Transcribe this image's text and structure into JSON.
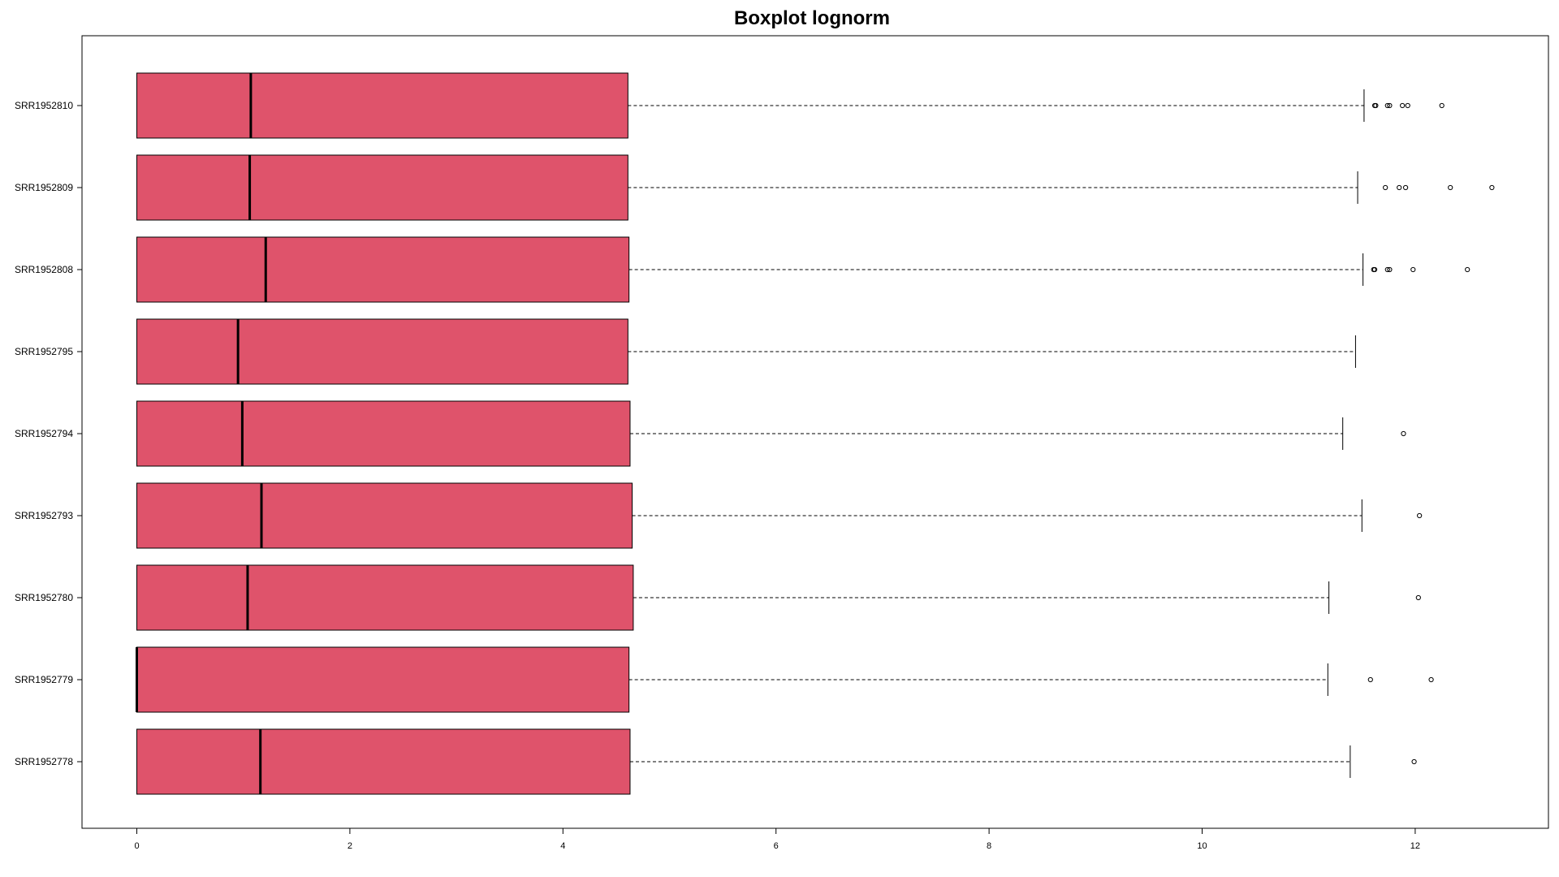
{
  "chart_data": {
    "type": "boxplot",
    "orientation": "horizontal",
    "title": "Boxplot lognorm",
    "xlabel": "",
    "ylabel": "",
    "xlim": [
      -0.5,
      13.1
    ],
    "xticks": [
      0,
      2,
      4,
      6,
      8,
      10,
      12
    ],
    "xtick_labels": [
      "0",
      "2",
      "4",
      "6",
      "8",
      "10",
      "12"
    ],
    "box_color": "#DF536B",
    "categories": [
      "SRR1952778",
      "SRR1952779",
      "SRR1952780",
      "SRR1952793",
      "SRR1952794",
      "SRR1952795",
      "SRR1952808",
      "SRR1952809",
      "SRR1952810"
    ],
    "boxes": [
      {
        "name": "SRR1952778",
        "min": 0,
        "q1": 0,
        "median": 1.16,
        "q3": 4.63,
        "whisker_high": 11.39,
        "outliers": [
          11.99
        ]
      },
      {
        "name": "SRR1952779",
        "min": 0,
        "q1": 0,
        "median": 0.0,
        "q3": 4.62,
        "whisker_high": 11.18,
        "outliers": [
          11.58,
          12.15
        ]
      },
      {
        "name": "SRR1952780",
        "min": 0,
        "q1": 0,
        "median": 1.04,
        "q3": 4.66,
        "whisker_high": 11.19,
        "outliers": [
          12.03
        ]
      },
      {
        "name": "SRR1952793",
        "min": 0,
        "q1": 0,
        "median": 1.17,
        "q3": 4.65,
        "whisker_high": 11.5,
        "outliers": [
          12.04
        ]
      },
      {
        "name": "SRR1952794",
        "min": 0,
        "q1": 0,
        "median": 0.99,
        "q3": 4.63,
        "whisker_high": 11.32,
        "outliers": [
          11.89
        ]
      },
      {
        "name": "SRR1952795",
        "min": 0,
        "q1": 0,
        "median": 0.95,
        "q3": 4.61,
        "whisker_high": 11.44,
        "outliers": []
      },
      {
        "name": "SRR1952808",
        "min": 0,
        "q1": 0,
        "median": 1.21,
        "q3": 4.62,
        "whisker_high": 11.51,
        "outliers": [
          11.61,
          11.62,
          11.74,
          11.76,
          11.98,
          12.49
        ]
      },
      {
        "name": "SRR1952809",
        "min": 0,
        "q1": 0,
        "median": 1.06,
        "q3": 4.61,
        "whisker_high": 11.46,
        "outliers": [
          11.72,
          11.85,
          11.91,
          12.33,
          12.72
        ]
      },
      {
        "name": "SRR1952810",
        "min": 0,
        "q1": 0,
        "median": 1.07,
        "q3": 4.61,
        "whisker_high": 11.52,
        "outliers": [
          11.62,
          11.63,
          11.74,
          11.76,
          11.88,
          11.93,
          12.25
        ]
      }
    ]
  }
}
